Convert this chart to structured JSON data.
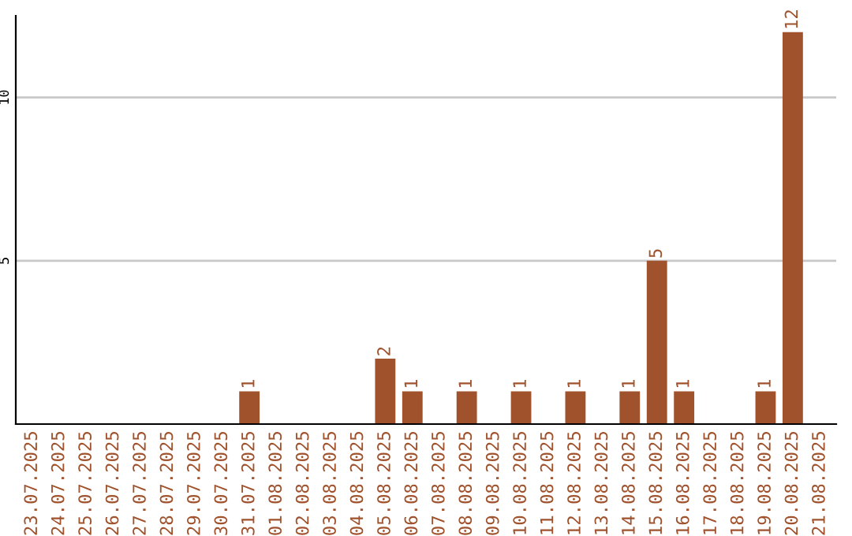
{
  "chart_data": {
    "type": "bar",
    "categories": [
      "23.07.2025",
      "24.07.2025",
      "25.07.2025",
      "26.07.2025",
      "27.07.2025",
      "28.07.2025",
      "29.07.2025",
      "30.07.2025",
      "31.07.2025",
      "01.08.2025",
      "02.08.2025",
      "03.08.2025",
      "04.08.2025",
      "05.08.2025",
      "06.08.2025",
      "07.08.2025",
      "08.08.2025",
      "09.08.2025",
      "10.08.2025",
      "11.08.2025",
      "12.08.2025",
      "13.08.2025",
      "14.08.2025",
      "15.08.2025",
      "16.08.2025",
      "17.08.2025",
      "18.08.2025",
      "19.08.2025",
      "20.08.2025",
      "21.08.2025"
    ],
    "values": [
      0,
      0,
      0,
      0,
      0,
      0,
      0,
      0,
      1,
      0,
      0,
      0,
      0,
      2,
      1,
      0,
      1,
      0,
      1,
      0,
      1,
      0,
      1,
      5,
      1,
      0,
      0,
      1,
      12,
      0
    ],
    "value_labels": [
      null,
      null,
      null,
      null,
      null,
      null,
      null,
      null,
      "1",
      null,
      null,
      null,
      null,
      "2",
      "1",
      null,
      "1",
      null,
      "1",
      null,
      "1",
      null,
      "1",
      "5",
      "1",
      null,
      null,
      "1",
      "12",
      null
    ],
    "color": "#a0522d",
    "ylim": [
      0,
      12.5
    ],
    "yticks": [
      5,
      10
    ],
    "grid": "y"
  }
}
